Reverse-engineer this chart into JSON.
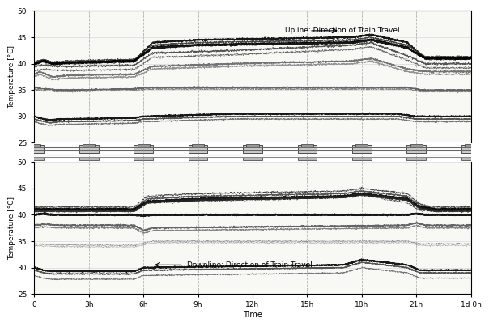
{
  "title_up": "Temperature [°C]",
  "title_down": "Temperature [°C]",
  "xlabel": "Time",
  "ylim": [
    25,
    50
  ],
  "yticks": [
    25,
    30,
    35,
    40,
    45,
    50
  ],
  "xticks": [
    0,
    3,
    6,
    9,
    12,
    15,
    18,
    21,
    24
  ],
  "xticklabels": [
    "0",
    "3h",
    "6h",
    "9h",
    "12h",
    "15h",
    "18h",
    "21h",
    "1d 0h"
  ],
  "annotation_up": "Upline: Direction of Train Travel",
  "annotation_down": "Downline: Direction of Train Travel",
  "station_x": [
    0,
    3,
    6,
    9,
    12,
    15,
    18,
    21,
    24
  ],
  "vline_x": [
    3,
    6,
    9,
    12,
    15,
    18,
    21
  ]
}
